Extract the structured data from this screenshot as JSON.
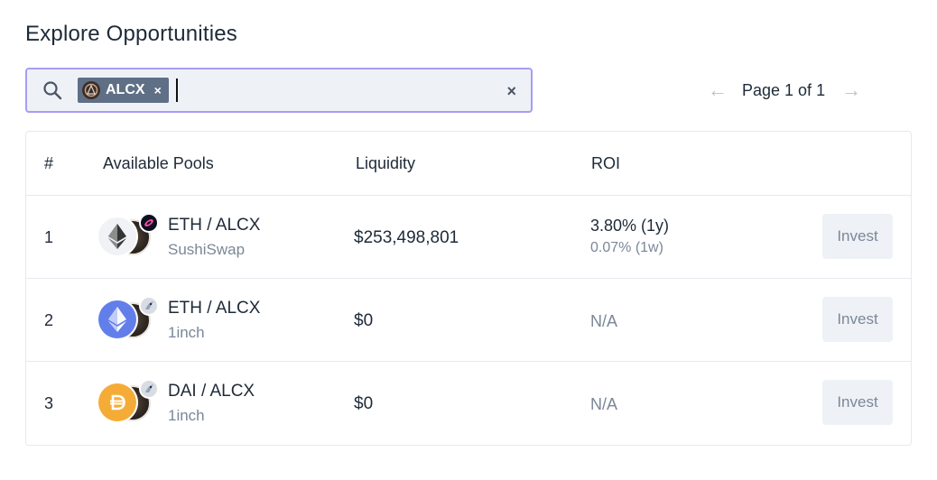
{
  "page_title": "Explore Opportunities",
  "search": {
    "chip_label": "ALCX",
    "chip_close": "×",
    "clear_icon": "×"
  },
  "pagination": {
    "label": "Page 1 of 1",
    "prev": "←",
    "next": "→"
  },
  "table": {
    "headers": {
      "num": "#",
      "pools": "Available Pools",
      "liquidity": "Liquidity",
      "roi": "ROI"
    },
    "rows": [
      {
        "num": "1",
        "pool": "ETH / ALCX",
        "platform": "SushiSwap",
        "liquidity": "$253,498,801",
        "roi_main": "3.80% (1y)",
        "roi_sub": "0.07% (1w)",
        "invest": "Invest",
        "token_icon": "eth-icon",
        "platform_icon": "sushiswap-icon"
      },
      {
        "num": "2",
        "pool": "ETH / ALCX",
        "platform": "1inch",
        "liquidity": "$0",
        "roi_main": "N/A",
        "invest": "Invest",
        "token_icon": "eth-icon",
        "platform_icon": "1inch-icon"
      },
      {
        "num": "3",
        "pool": "DAI / ALCX",
        "platform": "1inch",
        "liquidity": "$0",
        "roi_main": "N/A",
        "invest": "Invest",
        "token_icon": "dai-icon",
        "platform_icon": "1inch-icon"
      }
    ]
  },
  "colors": {
    "search_border": "#a99cf3",
    "search_bg": "#eef2f7",
    "chip_bg": "#5f6f86",
    "eth_blue": "#627eea",
    "dai_yellow": "#f5ac37"
  }
}
